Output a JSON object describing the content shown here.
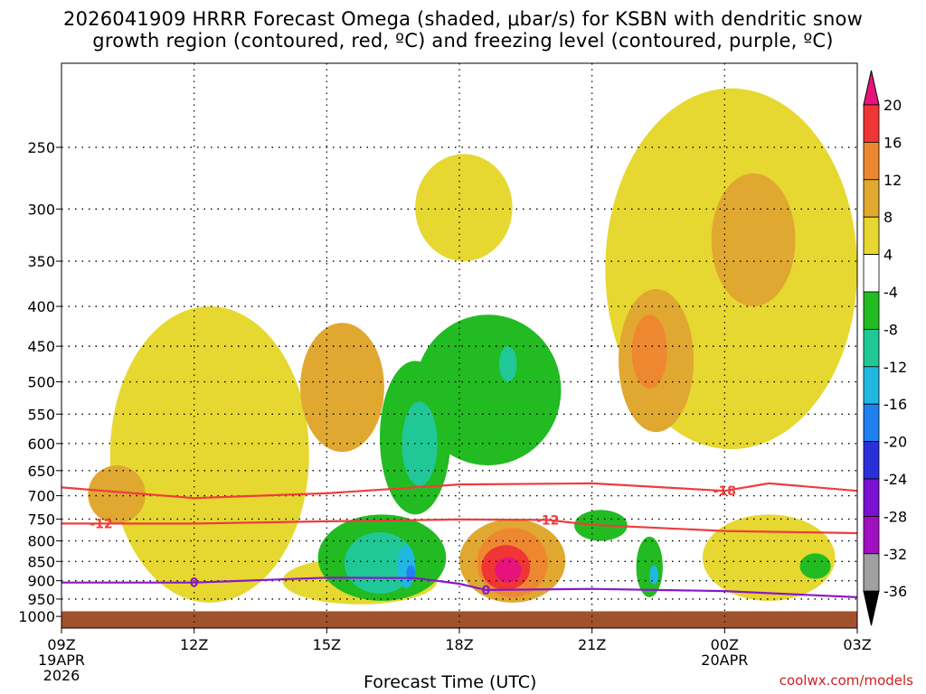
{
  "title_line1": "2026041909 HRRR Forecast Omega (shaded, μbar/s) for KSBN with dendritic snow",
  "title_line2": "growth region (contoured, red, ºC) and freezing level (contoured, purple, ºC)",
  "credit": "coolwx.com/models",
  "chart_data": {
    "type": "time-height cross section",
    "x_axis_title": "Forecast Time (UTC)",
    "x_ticks": [
      {
        "hour": 0,
        "label": "09Z",
        "sub1": "19APR",
        "sub2": "2026"
      },
      {
        "hour": 3,
        "label": "12Z",
        "sub1": "",
        "sub2": ""
      },
      {
        "hour": 6,
        "label": "15Z",
        "sub1": "",
        "sub2": ""
      },
      {
        "hour": 9,
        "label": "18Z",
        "sub1": "",
        "sub2": ""
      },
      {
        "hour": 12,
        "label": "21Z",
        "sub1": "",
        "sub2": ""
      },
      {
        "hour": 15,
        "label": "00Z",
        "sub1": "20APR",
        "sub2": ""
      },
      {
        "hour": 18,
        "label": "03Z",
        "sub1": "",
        "sub2": ""
      }
    ],
    "x_range_hours": [
      0,
      18
    ],
    "y_axis": "pressure (hPa)",
    "y_ticks": [
      250,
      300,
      350,
      400,
      450,
      500,
      550,
      600,
      650,
      700,
      750,
      800,
      850,
      900,
      950,
      1000
    ],
    "y_range_hpa": [
      195,
      1035
    ],
    "ground_level_hpa": 985,
    "colorbar": {
      "levels": [
        "20",
        "16",
        "12",
        "8",
        "4",
        "-4",
        "-8",
        "-12",
        "-16",
        "-20",
        "-24",
        "-28",
        "-32",
        "-36"
      ],
      "colors": [
        "#e8127c",
        "#f03535",
        "#ee8830",
        "#e0a830",
        "#e6d830",
        "#ffffff",
        "#22bb22",
        "#20c898",
        "#20b8e0",
        "#2080f0",
        "#2a30d8",
        "#7a10d0",
        "#a010c0",
        "#a0a0a0",
        "#000000"
      ]
    },
    "contours": [
      {
        "name": "-18",
        "color": "#f03c3c",
        "label": "-18",
        "label_hour": 15.0,
        "points": [
          [
            0,
            683
          ],
          [
            3,
            705
          ],
          [
            6,
            695
          ],
          [
            9,
            677
          ],
          [
            12,
            675
          ],
          [
            15,
            690
          ],
          [
            16,
            675
          ],
          [
            18,
            690
          ]
        ]
      },
      {
        "name": "-12",
        "color": "#f03c3c",
        "label": "-12",
        "label_hour": 0.9,
        "points": [
          [
            0,
            760
          ],
          [
            3,
            760
          ],
          [
            6,
            755
          ],
          [
            9,
            751
          ],
          [
            11,
            752
          ],
          [
            12,
            763
          ],
          [
            15,
            777
          ],
          [
            18,
            782
          ]
        ]
      },
      {
        "name": "0",
        "color": "#8a18c8",
        "label": "0",
        "label_hour": 3.0,
        "points": [
          [
            0,
            905
          ],
          [
            3,
            905
          ],
          [
            6,
            892
          ],
          [
            8,
            893
          ],
          [
            9,
            908
          ],
          [
            9.6,
            925
          ],
          [
            12,
            922
          ],
          [
            15,
            928
          ],
          [
            18,
            945
          ]
        ]
      }
    ],
    "extra_labels": [
      {
        "text": "0",
        "hour": 9.6,
        "hpa": 925,
        "color": "#8a18c8"
      },
      {
        "text": "-12",
        "hour": 11.0,
        "hpa": 752,
        "color": "#f03c3c"
      }
    ],
    "omega_regions": [
      {
        "level": "4-8",
        "hours": [
          1.1,
          5.6
        ],
        "hpa": [
          400,
          960
        ]
      },
      {
        "level": "4-8",
        "hours": [
          5.0,
          8.5
        ],
        "hpa": [
          840,
          965
        ]
      },
      {
        "level": "4-8",
        "hours": [
          8.0,
          10.2
        ],
        "hpa": [
          255,
          350
        ]
      },
      {
        "level": "4-8",
        "hours": [
          12.3,
          18.0
        ],
        "hpa": [
          210,
          610
        ]
      },
      {
        "level": "4-8",
        "hours": [
          14.5,
          17.5
        ],
        "hpa": [
          740,
          955
        ]
      },
      {
        "level": "8-12",
        "hours": [
          5.4,
          7.3
        ],
        "hpa": [
          420,
          615
        ]
      },
      {
        "level": "8-12",
        "hours": [
          0.6,
          1.9
        ],
        "hpa": [
          640,
          760
        ]
      },
      {
        "level": "8-12",
        "hours": [
          12.6,
          14.3
        ],
        "hpa": [
          380,
          580
        ]
      },
      {
        "level": "8-12",
        "hours": [
          14.7,
          16.6
        ],
        "hpa": [
          270,
          400
        ]
      },
      {
        "level": "8-12",
        "hours": [
          9.0,
          11.4
        ],
        "hpa": [
          750,
          960
        ]
      },
      {
        "level": "12-16",
        "hours": [
          12.9,
          13.7
        ],
        "hpa": [
          410,
          510
        ]
      },
      {
        "level": "12-16",
        "hours": [
          9.4,
          11.0
        ],
        "hpa": [
          770,
          945
        ]
      },
      {
        "level": "16-20",
        "hours": [
          9.5,
          10.6
        ],
        "hpa": [
          810,
          925
        ]
      },
      {
        "level": "20+",
        "hours": [
          9.8,
          10.4
        ],
        "hpa": [
          840,
          905
        ]
      },
      {
        "level": "-4 to -8",
        "hours": [
          7.2,
          8.8
        ],
        "hpa": [
          470,
          740
        ]
      },
      {
        "level": "-4 to -8",
        "hours": [
          8.0,
          11.3
        ],
        "hpa": [
          410,
          640
        ]
      },
      {
        "level": "-4 to -8",
        "hours": [
          5.8,
          8.7
        ],
        "hpa": [
          740,
          955
        ]
      },
      {
        "level": "-4 to -8",
        "hours": [
          11.6,
          12.8
        ],
        "hpa": [
          730,
          800
        ]
      },
      {
        "level": "-4 to -8",
        "hours": [
          13.0,
          13.6
        ],
        "hpa": [
          790,
          945
        ]
      },
      {
        "level": "-4 to -8",
        "hours": [
          16.7,
          17.4
        ],
        "hpa": [
          830,
          895
        ]
      },
      {
        "level": "-8 to -12",
        "hours": [
          7.7,
          8.5
        ],
        "hpa": [
          530,
          680
        ]
      },
      {
        "level": "-8 to -12",
        "hours": [
          6.4,
          8.0
        ],
        "hpa": [
          780,
          935
        ]
      },
      {
        "level": "-8 to -12",
        "hours": [
          9.9,
          10.3
        ],
        "hpa": [
          450,
          500
        ]
      },
      {
        "level": "-12 to -16",
        "hours": [
          7.6,
          8.0
        ],
        "hpa": [
          810,
          920
        ]
      },
      {
        "level": "-12 to -16",
        "hours": [
          13.3,
          13.5
        ],
        "hpa": [
          860,
          910
        ]
      },
      {
        "level": "-16 to -20",
        "hours": [
          7.8,
          8.0
        ],
        "hpa": [
          860,
          900
        ]
      }
    ]
  }
}
